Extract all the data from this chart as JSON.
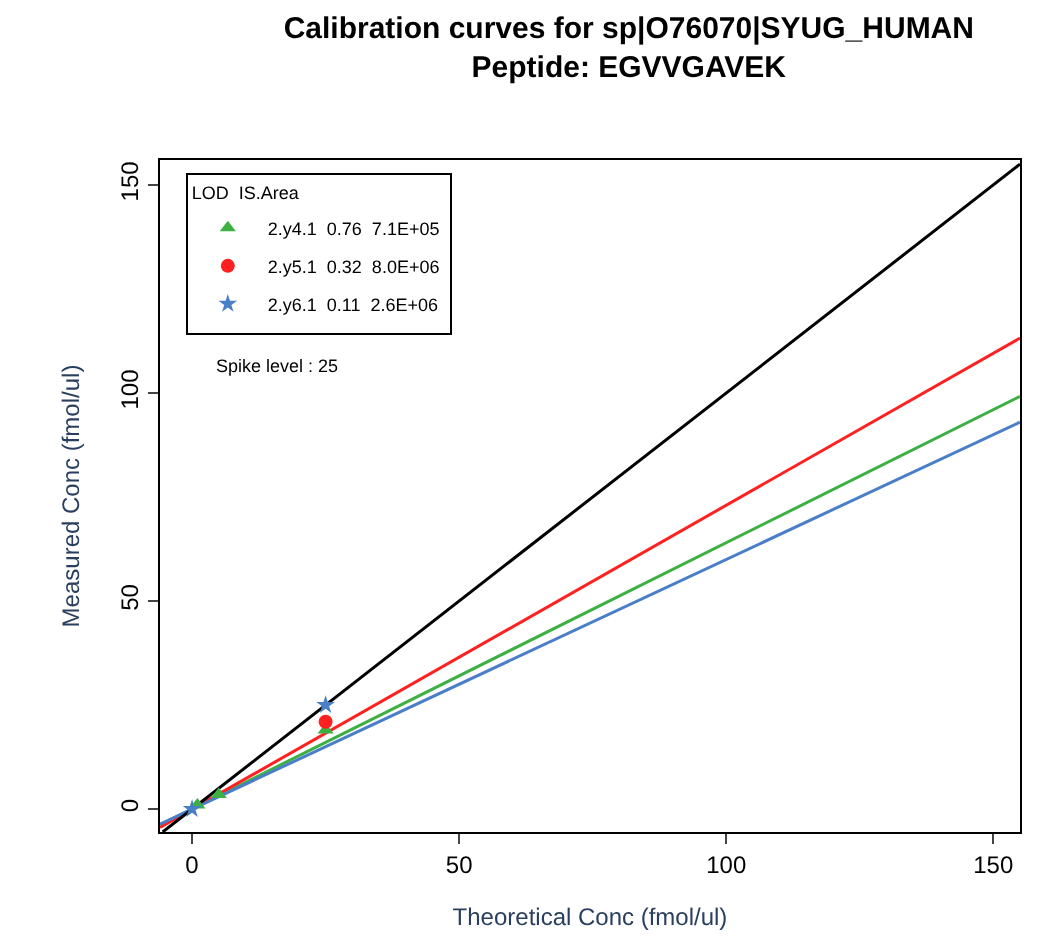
{
  "chart_data": {
    "type": "scatter",
    "title": "Calibration curves for sp|O76070|SYUG_HUMAN",
    "subtitle": "Peptide: EGVVGAVEK",
    "xlabel": "Theoretical Conc (fmol/ul)",
    "ylabel": "Measured Conc (fmol/ul)",
    "legend_title": "LOD  IS.Area",
    "annotations": [
      "Spike level : 25"
    ],
    "xlim": [
      -6,
      155
    ],
    "xticks": [
      0,
      50,
      100,
      150
    ],
    "ylim": [
      -5.5,
      156
    ],
    "yticks": [
      0,
      50,
      100,
      150
    ],
    "legend": "top left",
    "series": [
      {
        "name": "2.y4.1  0.76  7.1E+05",
        "color": "#3cb043",
        "marker": "triangle",
        "x": [
          1,
          5,
          25
        ],
        "values": [
          1,
          3.5,
          19
        ]
      },
      {
        "name": "2.y5.1  0.32  8.0E+06",
        "color": "#ff2020",
        "marker": "circle",
        "x": [
          25
        ],
        "values": [
          21
        ]
      },
      {
        "name": "2.y6.1  0.11  2.6E+06",
        "color": "#4a7fc8",
        "marker": "star",
        "x": [
          0,
          25
        ],
        "values": [
          0,
          25
        ]
      },
      {
        "type": "line",
        "color": "#3cb043",
        "x": [
          -6,
          155
        ],
        "values": [
          -3.8,
          99.2
        ]
      },
      {
        "type": "line",
        "color": "#ff2020",
        "x": [
          -6,
          155
        ],
        "values": [
          -4.4,
          113.2
        ]
      },
      {
        "type": "line",
        "color": "#4a7fc8",
        "x": [
          -6,
          155
        ],
        "values": [
          -3.6,
          93
        ]
      },
      {
        "type": "line",
        "color": "#000000",
        "x": [
          -5.5,
          155
        ],
        "values": [
          -5.5,
          155
        ]
      }
    ]
  }
}
